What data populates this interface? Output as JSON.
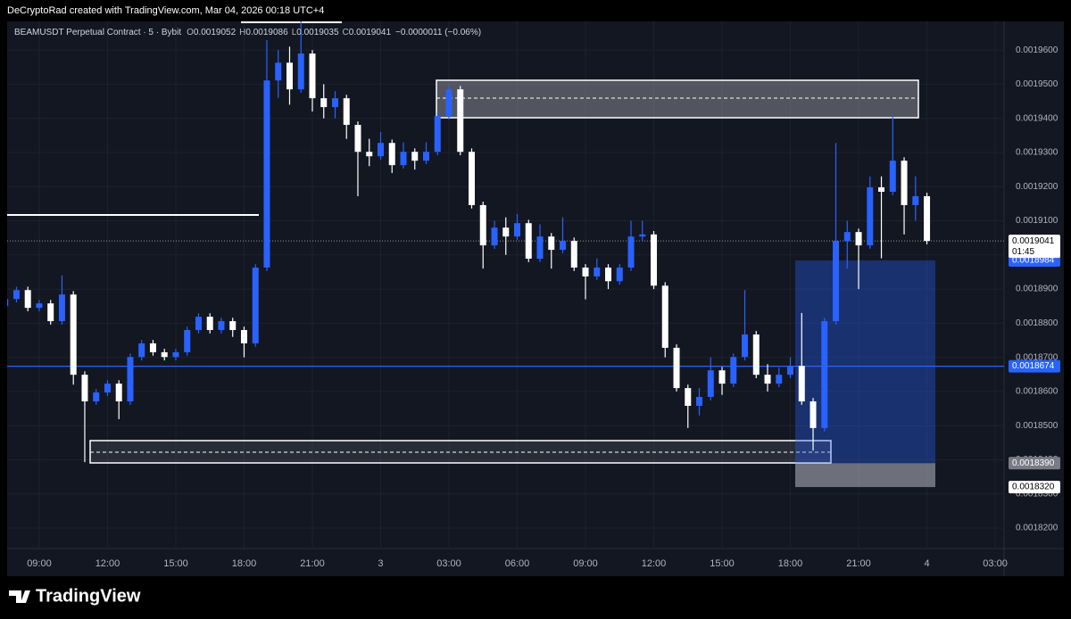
{
  "header": "DeCryptoRad created with TradingView.com, Mar 04, 2026 00:18 UTC+4",
  "legend": {
    "symbol": "BEAMUSDT Perpetual Contract · 5 · Bybit",
    "ohlc": [
      {
        "key": "O",
        "value": "0.0019052"
      },
      {
        "key": "H",
        "value": "0.0019086"
      },
      {
        "key": "L",
        "value": "0.0019035"
      },
      {
        "key": "C",
        "value": "0.0019041"
      }
    ],
    "change": "−0.0000011 (−0.06%)"
  },
  "footer": "TradingView",
  "chart_data": {
    "type": "candlestick",
    "categories": [
      null,
      null,
      null,
      "09:00",
      null,
      null,
      null,
      null,
      null,
      "12:00",
      null,
      null,
      null,
      null,
      null,
      "15:00",
      null,
      null,
      null,
      null,
      null,
      "18:00",
      null,
      null,
      null,
      null,
      null,
      "21:00",
      null,
      null,
      null,
      null,
      null,
      "3",
      null,
      null,
      null,
      null,
      null,
      "03:00",
      null,
      null,
      null,
      null,
      null,
      "06:00",
      null,
      null,
      null,
      null,
      null,
      "09:00",
      null,
      null,
      null,
      null,
      null,
      "12:00",
      null,
      null,
      null,
      null,
      null,
      "15:00",
      null,
      null,
      null,
      null,
      null,
      "18:00",
      null,
      null,
      null,
      null,
      null,
      "21:00",
      null,
      null,
      null,
      null,
      null,
      "4",
      null,
      null,
      null,
      null,
      null,
      "03:00"
    ],
    "open": [
      0.001885,
      0.0018871,
      0.0018897,
      0.0018845,
      0.0018858,
      0.0018806,
      0.0018884,
      0.0018649,
      0.0018571,
      0.0018597,
      0.0018623,
      0.0018571,
      0.0018701,
      0.0018741,
      0.0018715,
      0.0018701,
      0.0018715,
      0.001878,
      0.0018819,
      0.001878,
      0.0018806,
      0.001878,
      0.0018741,
      0.0018963,
      0.0019511,
      0.0019563,
      0.0019485,
      0.001959,
      0.0019459,
      0.0019433,
      0.0019459,
      0.0019381,
      0.0019302,
      0.0019289,
      0.0019328,
      0.0019263,
      0.0019302,
      0.0019276,
      0.0019302,
      0.0019407,
      0.0019485,
      0.0019302,
      0.0019146,
      0.0019028,
      0.001908,
      0.0019054,
      0.0019093,
      0.0018989,
      0.0019054,
      0.0019015,
      0.0019041,
      0.0018963,
      0.0018937,
      0.0018963,
      0.0018923,
      0.0018963,
      0.0019054,
      0.001906,
      0.001891,
      0.0018728,
      0.001861,
      0.0018558,
      0.0018584,
      0.0018662,
      0.0018623,
      0.0018701,
      0.0018767,
      0.0018649,
      0.0018623,
      0.0018649,
      0.0018675,
      0.0018571,
      0.0018493,
      0.0018806,
      0.0019041,
      0.0019067,
      0.0019028,
      0.0019198,
      0.0019185,
      0.0019276,
      0.0019146,
      0.0019172,
      null,
      null,
      null,
      null,
      null,
      null
    ],
    "high": [
      0.0018881,
      0.0018907,
      0.0018907,
      0.0018868,
      0.0018868,
      0.001894,
      0.0018894,
      0.0018659,
      0.0018607,
      0.0018633,
      0.0018633,
      0.0018711,
      0.0018751,
      0.0018751,
      0.0018725,
      0.0018725,
      0.001879,
      0.0018829,
      0.0018829,
      0.0018816,
      0.0018816,
      0.001879,
      0.0018973,
      0.0019629,
      0.00196,
      0.001961,
      0.0019694,
      0.00196,
      0.00195,
      0.001948,
      0.0019469,
      0.0019391,
      0.001934,
      0.001936,
      0.0019338,
      0.001933,
      0.0019312,
      0.001933,
      0.0019417,
      0.0019498,
      0.0019495,
      0.0019312,
      0.0019156,
      0.00191,
      0.001911,
      0.001912,
      0.0019103,
      0.001909,
      0.0019064,
      0.001911,
      0.0019051,
      0.0018973,
      0.001899,
      0.0018973,
      0.0018973,
      0.00191,
      0.00191,
      0.001907,
      0.001892,
      0.0018738,
      0.001862,
      0.001861,
      0.00187,
      0.0018672,
      0.0018711,
      0.0018897,
      0.0018777,
      0.001868,
      0.001867,
      0.00187,
      0.001883,
      0.0018581,
      0.0018816,
      0.0019328,
      0.00191,
      0.0019077,
      0.001923,
      0.001923,
      0.0019407,
      0.0019286,
      0.001923,
      0.0019182,
      null,
      null,
      null,
      null,
      null,
      null
    ],
    "low": [
      0.001884,
      0.0018861,
      0.0018835,
      0.0018835,
      0.0018796,
      0.0018796,
      0.001862,
      0.0018393,
      0.0018561,
      0.0018587,
      0.0018519,
      0.0018561,
      0.0018691,
      0.0018705,
      0.0018691,
      0.0018691,
      0.0018705,
      0.001877,
      0.001877,
      0.001877,
      0.001876,
      0.00187,
      0.0018731,
      0.0018953,
      0.001946,
      0.001944,
      0.0019475,
      0.001942,
      0.00194,
      0.00194,
      0.001934,
      0.0019172,
      0.001926,
      0.0019279,
      0.001924,
      0.0019253,
      0.001925,
      0.0019266,
      0.0019292,
      0.0019397,
      0.0019292,
      0.0019136,
      0.001896,
      0.0019018,
      0.0019,
      0.0019044,
      0.0018979,
      0.0018979,
      0.001896,
      0.0019005,
      0.0018953,
      0.001887,
      0.0018927,
      0.00189,
      0.0018913,
      0.0018953,
      0.001904,
      0.00189,
      0.00187,
      0.00186,
      0.0018493,
      0.001853,
      0.0018574,
      0.001859,
      0.0018613,
      0.0018691,
      0.0018639,
      0.00186,
      0.0018613,
      0.0018639,
      0.0018561,
      0.0018427,
      0.0018483,
      0.0018796,
      0.001896,
      0.00189,
      0.0019018,
      0.001899,
      0.0019175,
      0.001906,
      0.00191,
      0.0019031,
      null,
      null,
      null,
      null,
      null,
      null
    ],
    "close": [
      0.0018871,
      0.0018897,
      0.0018845,
      0.0018858,
      0.0018806,
      0.0018884,
      0.0018649,
      0.0018571,
      0.0018597,
      0.0018623,
      0.0018571,
      0.0018701,
      0.0018741,
      0.0018715,
      0.0018701,
      0.0018715,
      0.001878,
      0.0018819,
      0.001878,
      0.0018806,
      0.001878,
      0.0018741,
      0.0018963,
      0.0019511,
      0.0019563,
      0.0019485,
      0.001959,
      0.0019459,
      0.0019433,
      0.0019459,
      0.0019381,
      0.0019302,
      0.0019289,
      0.0019328,
      0.0019263,
      0.0019302,
      0.0019276,
      0.0019302,
      0.0019407,
      0.0019485,
      0.0019302,
      0.0019146,
      0.0019028,
      0.001908,
      0.0019054,
      0.0019093,
      0.0018989,
      0.0019054,
      0.0019015,
      0.0019041,
      0.0018963,
      0.0018937,
      0.0018963,
      0.0018923,
      0.0018963,
      0.0019054,
      0.001906,
      0.001891,
      0.0018728,
      0.001861,
      0.0018558,
      0.0018584,
      0.0018662,
      0.0018623,
      0.0018701,
      0.0018767,
      0.0018649,
      0.0018623,
      0.0018649,
      0.0018675,
      0.0018571,
      0.0018493,
      0.0018806,
      0.0019041,
      0.0019067,
      0.0019028,
      0.0019198,
      0.0019185,
      0.0019276,
      0.0019146,
      0.0019172,
      0.0019041,
      null,
      null,
      null,
      null,
      null,
      null
    ],
    "up_color": "#2962ff",
    "down_color": "#ffffff",
    "ylim": [
      0.001814,
      0.0019684
    ],
    "yticks": [
      {
        "value": 0.00182,
        "label": "0.0018200"
      },
      {
        "value": 0.00183,
        "label": "0.0018300"
      },
      {
        "value": 0.00184,
        "label": "0.0018400"
      },
      {
        "value": 0.00185,
        "label": "0.0018500"
      },
      {
        "value": 0.00186,
        "label": "0.0018600"
      },
      {
        "value": 0.00187,
        "label": "0.0018700"
      },
      {
        "value": 0.00188,
        "label": "0.0018800"
      },
      {
        "value": 0.00189,
        "label": "0.0018900"
      },
      {
        "value": 0.0019,
        "label": "0.0019000"
      },
      {
        "value": 0.00191,
        "label": "0.0019100"
      },
      {
        "value": 0.00192,
        "label": "0.0019200"
      },
      {
        "value": 0.00193,
        "label": "0.0019300"
      },
      {
        "value": 0.00194,
        "label": "0.0019400"
      },
      {
        "value": 0.00195,
        "label": "0.0019500"
      },
      {
        "value": 0.00196,
        "label": "0.0019600"
      }
    ],
    "grid": true,
    "last_price": 0.0019041,
    "countdown": "01:45",
    "blue_level": 0.0018674,
    "position": {
      "target": 0.0018984,
      "entry": {
        "value": 0.001839,
        "label": "0.0018390"
      },
      "stop": {
        "value": 0.001832,
        "label": "0.0018320"
      }
    }
  }
}
